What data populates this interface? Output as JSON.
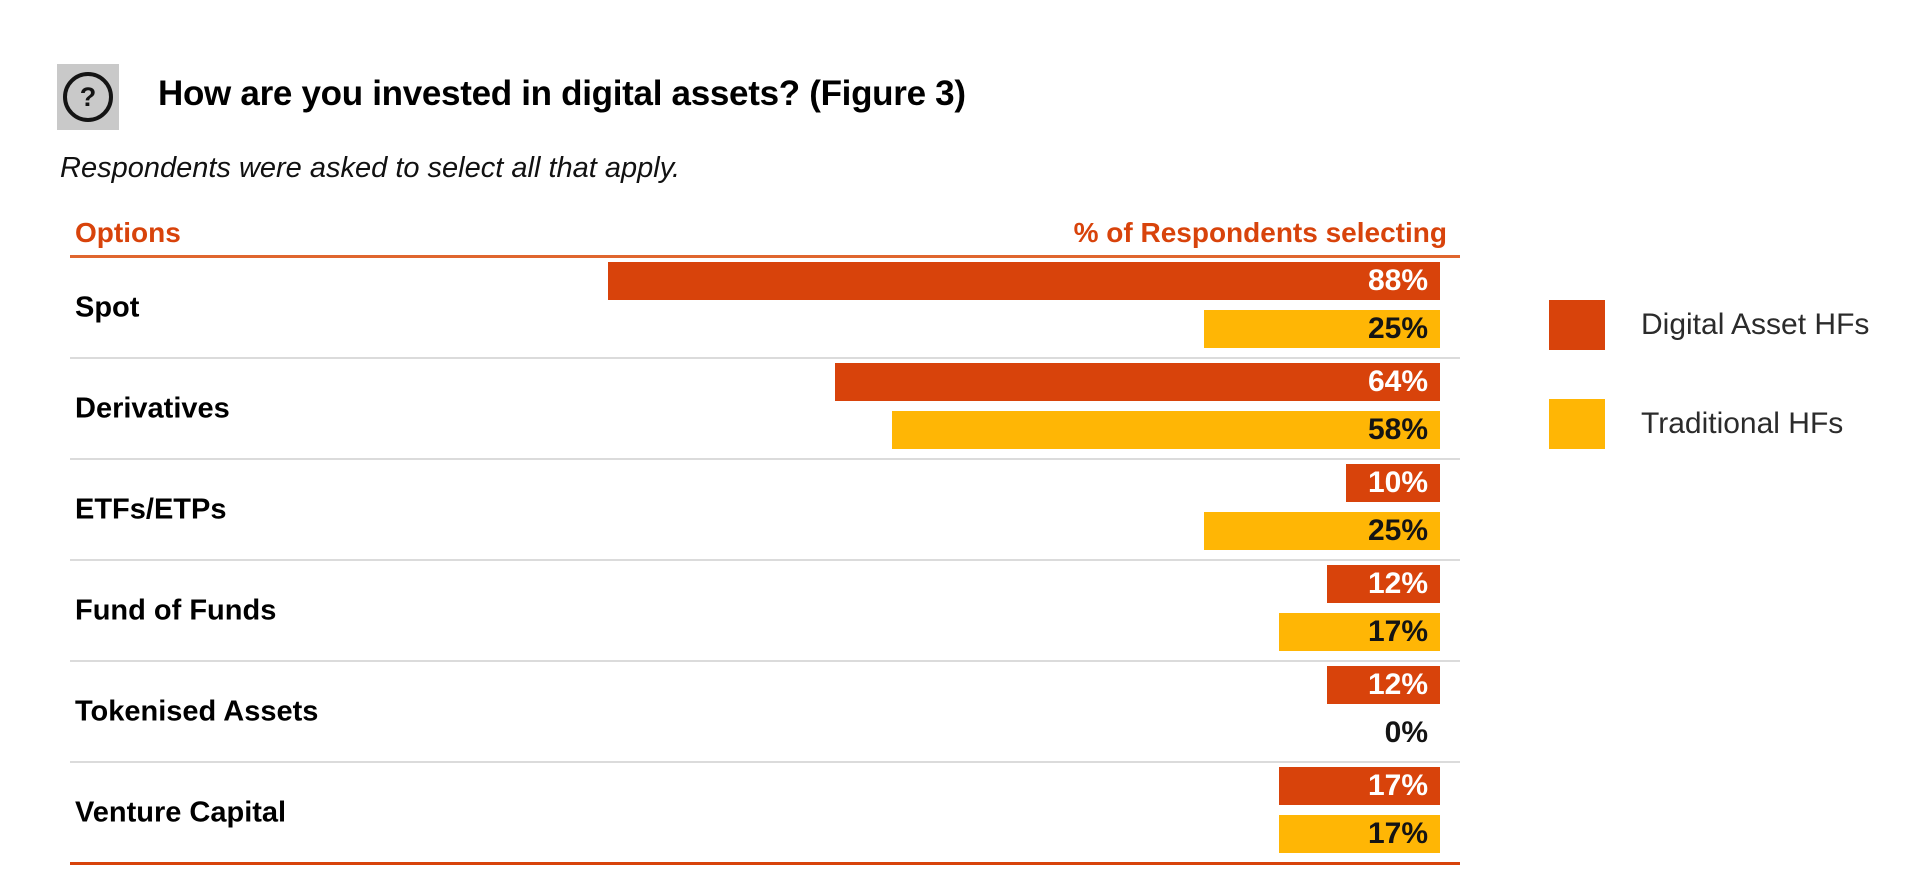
{
  "header": {
    "icon": "question-mark-icon",
    "icon_glyph": "?",
    "title": "How are you invested in digital assets? (Figure 3)"
  },
  "subtitle": "Respondents were asked to select all that apply.",
  "table": {
    "col_left": "Options",
    "col_right": "% of Respondents selecting"
  },
  "legend": [
    {
      "label": "Digital Asset HFs",
      "color": "#d8430b"
    },
    {
      "label": "Traditional HFs",
      "color": "#ffb605"
    }
  ],
  "colors": {
    "accent_red": "#d8430b",
    "accent_yellow": "#ffb605",
    "rule_orange": "#e0662f",
    "separator_gray": "#dbdbdb",
    "legend_text": "#2b2b2b"
  },
  "chart_data": {
    "type": "bar",
    "orientation": "horizontal",
    "bar_alignment": "right",
    "title": "How are you invested in digital assets? (Figure 3)",
    "xlabel": "% of Respondents selecting",
    "ylabel": "Options",
    "xlim": [
      0,
      100
    ],
    "value_suffix": "%",
    "grid": false,
    "legend_position": "right",
    "categories": [
      "Spot",
      "Derivatives",
      "ETFs/ETPs",
      "Fund of Funds",
      "Tokenised Assets",
      "Venture Capital"
    ],
    "series": [
      {
        "name": "Digital Asset HFs",
        "color": "#d8430b",
        "values": [
          88,
          64,
          10,
          12,
          12,
          17
        ]
      },
      {
        "name": "Traditional HFs",
        "color": "#ffb605",
        "values": [
          25,
          58,
          25,
          17,
          0,
          17
        ]
      }
    ]
  }
}
